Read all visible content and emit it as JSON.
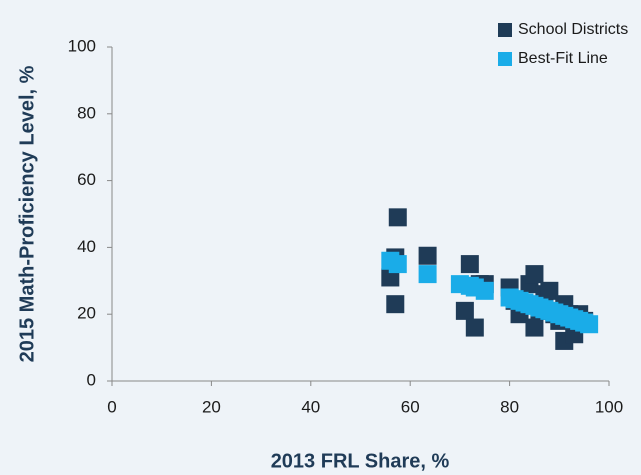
{
  "chart_data": {
    "type": "scatter",
    "xlabel": "2013 FRL Share, %",
    "ylabel": "2015 Math-Proficiency Level, %",
    "xlim": [
      0,
      100
    ],
    "ylim": [
      0,
      100
    ],
    "xticks": [
      0,
      20,
      40,
      60,
      80,
      100
    ],
    "yticks": [
      0,
      20,
      40,
      60,
      80,
      100
    ],
    "grid": false,
    "legend": "upper right",
    "series": [
      {
        "name": "School Districts",
        "color": "#1f3b57",
        "x": [
          56,
          57,
          57.5,
          57,
          63.5,
          71,
          72,
          73,
          74,
          75,
          80,
          81,
          82,
          83,
          84,
          85,
          85,
          86,
          87,
          88,
          89,
          90,
          91,
          91,
          92,
          93,
          94,
          95
        ],
        "values": [
          31,
          23,
          49,
          37,
          37.5,
          21,
          35,
          16,
          29,
          29,
          28,
          24,
          20,
          23,
          29,
          32,
          16,
          21,
          26,
          27,
          20,
          18,
          12,
          23,
          20,
          14,
          20,
          18
        ]
      },
      {
        "name": "Best-Fit Line",
        "color": "#1aace8",
        "x": [
          56,
          57.5,
          63.5,
          70,
          72,
          73,
          75,
          80,
          81,
          82,
          83,
          84,
          85,
          86,
          87,
          88,
          89,
          90,
          91,
          92,
          93,
          94,
          95,
          96
        ],
        "values": [
          36,
          35,
          32,
          29,
          28.5,
          28,
          27,
          25,
          24.5,
          24,
          23.5,
          23,
          22.5,
          22,
          21.5,
          21,
          20.5,
          20,
          19.5,
          19,
          18.5,
          18,
          17.5,
          17
        ]
      }
    ]
  }
}
